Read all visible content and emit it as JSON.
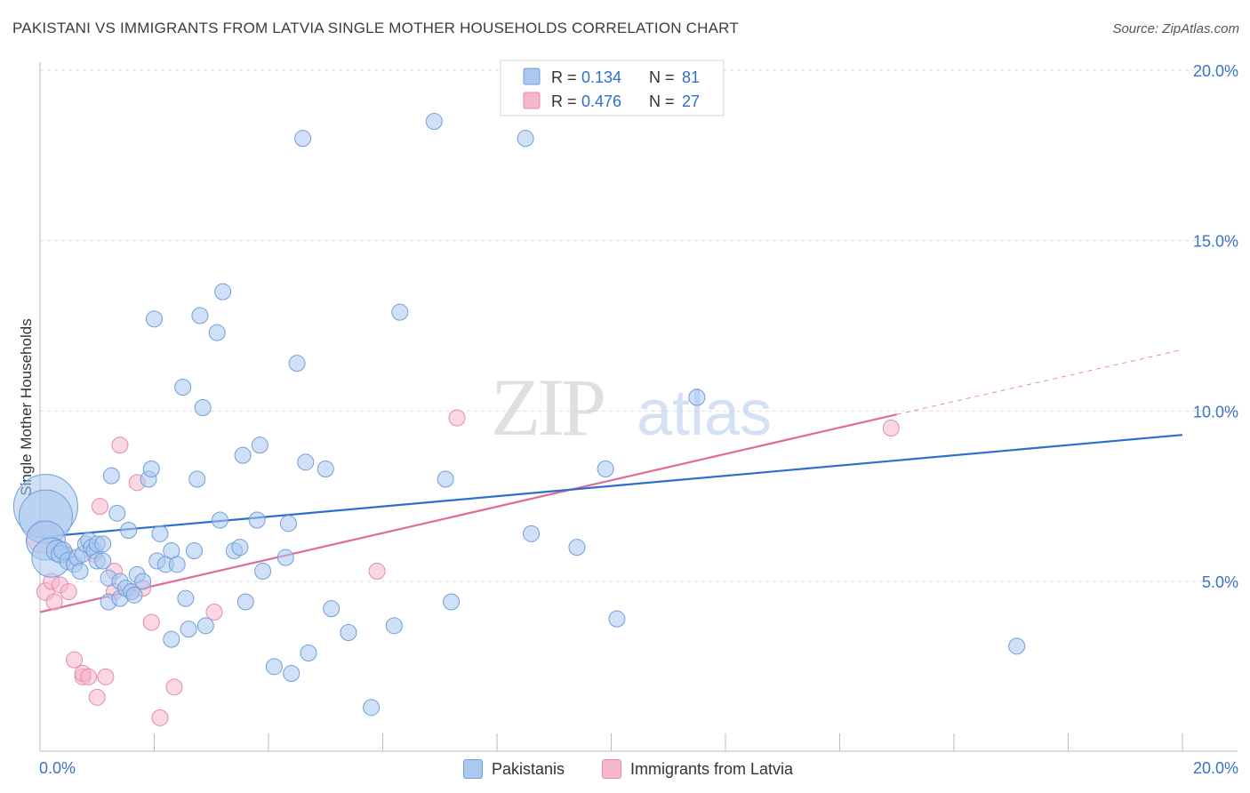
{
  "header": {
    "title": "PAKISTANI VS IMMIGRANTS FROM LATVIA SINGLE MOTHER HOUSEHOLDS CORRELATION CHART",
    "source": "Source: ZipAtlas.com"
  },
  "watermark": {
    "text_zip": "ZIP",
    "text_atlas": "atlas"
  },
  "legend_top": {
    "rows": [
      {
        "r_label": "R = ",
        "r_value": "0.134",
        "n_label": "N = ",
        "n_value": "81"
      },
      {
        "r_label": "R = ",
        "r_value": "0.476",
        "n_label": "N = ",
        "n_value": "27"
      }
    ]
  },
  "chart_data": {
    "type": "scatter",
    "title": "PAKISTANI VS IMMIGRANTS FROM LATVIA SINGLE MOTHER HOUSEHOLDS CORRELATION CHART",
    "xlabel": "",
    "ylabel": "Single Mother Households",
    "xlim": [
      0,
      20
    ],
    "ylim": [
      0,
      20.5
    ],
    "x_tick_labels": [
      {
        "value": 0,
        "label": "0.0%"
      },
      {
        "value": 20,
        "label": "20.0%"
      }
    ],
    "y_tick_labels": [
      {
        "value": 5,
        "label": "5.0%"
      },
      {
        "value": 10,
        "label": "10.0%"
      },
      {
        "value": 15,
        "label": "15.0%"
      },
      {
        "value": 20,
        "label": "20.0%"
      }
    ],
    "grid": "horizontal dashed",
    "legend_placement": "bottom",
    "colors": {
      "pakistanis_fill": "#aac8f0",
      "pakistanis_stroke": "#6f9fd8",
      "pakistanis_line": "#2d6fce",
      "latvia_fill": "#f6b7cb",
      "latvia_stroke": "#e58aa8",
      "latvia_line": "#e06b97",
      "tick_label": "#3a72c4"
    },
    "series": [
      {
        "name": "Pakistanis",
        "r": 0.134,
        "n": 81,
        "trend": {
          "x0": 0,
          "y0": 6.3,
          "x1": 20,
          "y1": 9.3
        },
        "points": [
          [
            0.1,
            7.2,
            36
          ],
          [
            0.1,
            6.9,
            30
          ],
          [
            0.1,
            6.2,
            22
          ],
          [
            0.2,
            5.7,
            22
          ],
          [
            0.3,
            5.9,
            12
          ],
          [
            0.35,
            5.8,
            10
          ],
          [
            0.4,
            5.9,
            10
          ],
          [
            0.5,
            5.6,
            10
          ],
          [
            0.6,
            5.5,
            9
          ],
          [
            0.65,
            5.7,
            9
          ],
          [
            0.7,
            5.3,
            9
          ],
          [
            0.75,
            5.8,
            9
          ],
          [
            0.8,
            6.1,
            9
          ],
          [
            0.85,
            6.2,
            9
          ],
          [
            0.9,
            6.0,
            9
          ],
          [
            0.95,
            5.9,
            9
          ],
          [
            1.0,
            6.1,
            9
          ],
          [
            1.1,
            6.1,
            9
          ],
          [
            1.0,
            5.6,
            9
          ],
          [
            1.1,
            5.6,
            9
          ],
          [
            1.2,
            5.1,
            9
          ],
          [
            1.2,
            4.4,
            9
          ],
          [
            1.25,
            8.1,
            9
          ],
          [
            1.35,
            7.0,
            9
          ],
          [
            1.4,
            5.0,
            9
          ],
          [
            1.4,
            4.5,
            9
          ],
          [
            1.5,
            4.8,
            9
          ],
          [
            1.55,
            6.5,
            9
          ],
          [
            1.6,
            4.7,
            9
          ],
          [
            1.65,
            4.6,
            9
          ],
          [
            1.7,
            5.2,
            9
          ],
          [
            1.8,
            5.0,
            9
          ],
          [
            1.9,
            8.0,
            9
          ],
          [
            1.95,
            8.3,
            9
          ],
          [
            2.0,
            12.7,
            9
          ],
          [
            2.05,
            5.6,
            9
          ],
          [
            2.1,
            6.4,
            9
          ],
          [
            2.2,
            5.5,
            9
          ],
          [
            2.3,
            3.3,
            9
          ],
          [
            2.3,
            5.9,
            9
          ],
          [
            2.4,
            5.5,
            9
          ],
          [
            2.5,
            10.7,
            9
          ],
          [
            2.55,
            4.5,
            9
          ],
          [
            2.6,
            3.6,
            9
          ],
          [
            2.7,
            5.9,
            9
          ],
          [
            2.75,
            8.0,
            9
          ],
          [
            2.8,
            12.8,
            9
          ],
          [
            2.85,
            10.1,
            9
          ],
          [
            2.9,
            3.7,
            9
          ],
          [
            3.1,
            12.3,
            9
          ],
          [
            3.15,
            6.8,
            9
          ],
          [
            3.2,
            13.5,
            9
          ],
          [
            3.4,
            5.9,
            9
          ],
          [
            3.5,
            6.0,
            9
          ],
          [
            3.55,
            8.7,
            9
          ],
          [
            3.6,
            4.4,
            9
          ],
          [
            3.8,
            6.8,
            9
          ],
          [
            3.85,
            9.0,
            9
          ],
          [
            3.9,
            5.3,
            9
          ],
          [
            4.1,
            2.5,
            9
          ],
          [
            4.3,
            5.7,
            9
          ],
          [
            4.35,
            6.7,
            9
          ],
          [
            4.4,
            2.3,
            9
          ],
          [
            4.5,
            11.4,
            9
          ],
          [
            4.6,
            18.0,
            9
          ],
          [
            4.65,
            8.5,
            9
          ],
          [
            4.7,
            2.9,
            9
          ],
          [
            5.0,
            8.3,
            9
          ],
          [
            5.1,
            4.2,
            9
          ],
          [
            5.4,
            3.5,
            9
          ],
          [
            5.8,
            1.3,
            9
          ],
          [
            6.2,
            3.7,
            9
          ],
          [
            6.3,
            12.9,
            9
          ],
          [
            6.9,
            18.5,
            9
          ],
          [
            7.1,
            8.0,
            9
          ],
          [
            7.2,
            4.4,
            9
          ],
          [
            8.5,
            18.0,
            9
          ],
          [
            8.6,
            6.4,
            9
          ],
          [
            9.4,
            6.0,
            9
          ],
          [
            9.9,
            8.3,
            9
          ],
          [
            10.1,
            3.9,
            9
          ],
          [
            11.5,
            10.4,
            9
          ],
          [
            17.1,
            3.1,
            9
          ]
        ]
      },
      {
        "name": "Immigrants from Latvia",
        "r": 0.476,
        "n": 27,
        "trend": {
          "x0": 0,
          "y0": 4.1,
          "x1": 15.0,
          "y1": 9.9,
          "dash_to_x": 20,
          "dash_to_y": 11.8
        },
        "points": [
          [
            0.05,
            6.3,
            18
          ],
          [
            0.1,
            4.7,
            10
          ],
          [
            0.2,
            5.0,
            9
          ],
          [
            0.25,
            4.4,
            9
          ],
          [
            0.35,
            4.9,
            9
          ],
          [
            0.45,
            5.8,
            9
          ],
          [
            0.5,
            4.7,
            9
          ],
          [
            0.6,
            2.7,
            9
          ],
          [
            0.75,
            2.2,
            9
          ],
          [
            0.75,
            2.3,
            9
          ],
          [
            0.85,
            2.2,
            9
          ],
          [
            0.95,
            5.8,
            9
          ],
          [
            1.0,
            1.6,
            9
          ],
          [
            1.05,
            7.2,
            9
          ],
          [
            1.15,
            2.2,
            9
          ],
          [
            1.3,
            5.3,
            9
          ],
          [
            1.3,
            4.7,
            9
          ],
          [
            1.4,
            9.0,
            9
          ],
          [
            1.6,
            4.7,
            9
          ],
          [
            1.7,
            7.9,
            9
          ],
          [
            1.8,
            4.8,
            9
          ],
          [
            1.95,
            3.8,
            9
          ],
          [
            2.1,
            1.0,
            9
          ],
          [
            2.35,
            1.9,
            9
          ],
          [
            3.05,
            4.1,
            9
          ],
          [
            5.9,
            5.3,
            9
          ],
          [
            7.3,
            9.8,
            9
          ],
          [
            14.9,
            9.5,
            9
          ]
        ]
      }
    ]
  },
  "legend_bottom": {
    "items": [
      {
        "label": "Pakistanis"
      },
      {
        "label": "Immigrants from Latvia"
      }
    ]
  }
}
